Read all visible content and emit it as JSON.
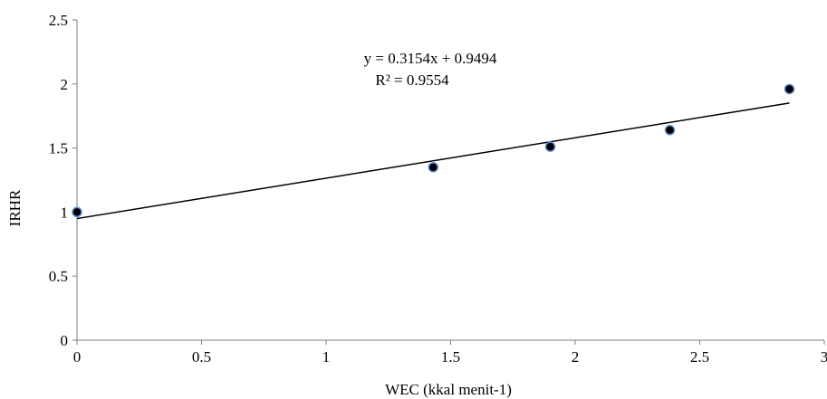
{
  "chart_data": {
    "type": "scatter",
    "title": "",
    "xlabel": "WEC (kkal menit-1)",
    "ylabel": "IRHR",
    "xlim": [
      0,
      3
    ],
    "ylim": [
      0,
      2.5
    ],
    "x_ticks": [
      "0",
      "0.5",
      "1",
      "1.5",
      "2",
      "2.5",
      "3"
    ],
    "y_ticks": [
      "0",
      "0.5",
      "1",
      "1.5",
      "2",
      "2.5"
    ],
    "grid": false,
    "legend": "none",
    "points": [
      {
        "x": 0,
        "y": 1.0
      },
      {
        "x": 1.43,
        "y": 1.35
      },
      {
        "x": 1.9,
        "y": 1.51
      },
      {
        "x": 2.38,
        "y": 1.64
      },
      {
        "x": 2.86,
        "y": 1.96
      }
    ],
    "trendline": {
      "type": "linear",
      "slope": 0.3154,
      "intercept": 0.9494,
      "x_range": [
        0,
        2.86
      ],
      "equation": "y = 0.3154x + 0.9494",
      "r_squared": "R² = 0.9554"
    },
    "colors": {
      "marker_fill": "#000000",
      "marker_stroke": "#5b8fd6",
      "line": "#000000",
      "axis": "#7f7f7f"
    }
  }
}
